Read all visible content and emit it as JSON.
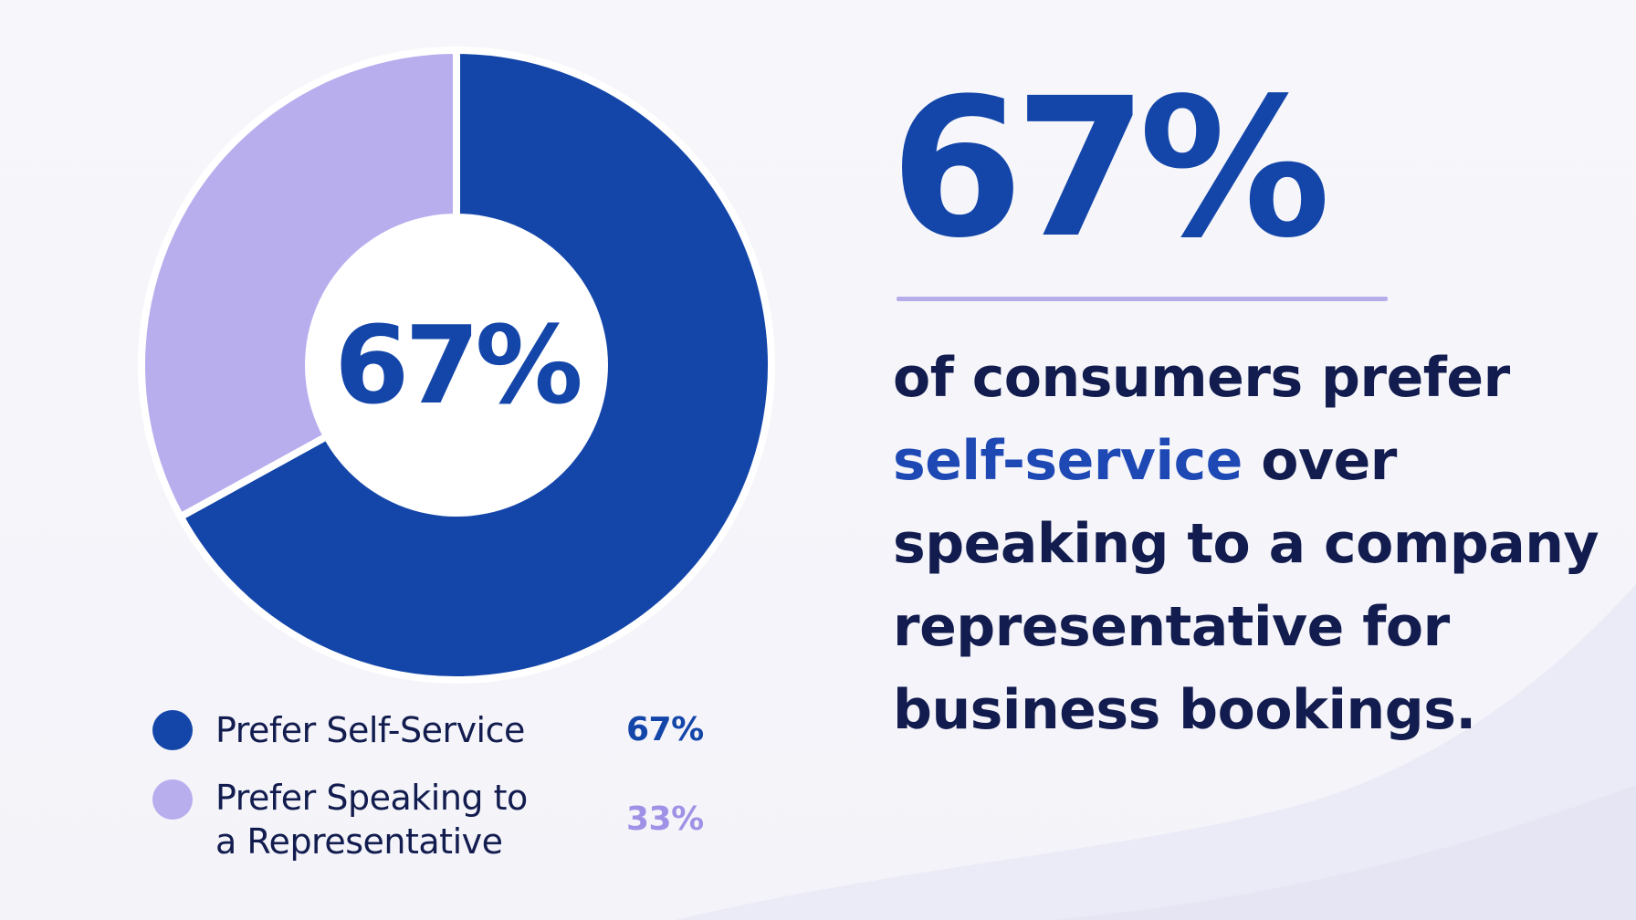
{
  "chart_data": {
    "type": "pie",
    "style": "donut",
    "slices": [
      {
        "label": "Prefer Self-Service",
        "value": 67,
        "value_text": "67%",
        "color": "#1446aa"
      },
      {
        "label": "Prefer Speaking to\na Representative",
        "value": 33,
        "value_text": "33%",
        "color": "#b8aeee"
      }
    ],
    "center_label": "67%"
  },
  "stat": {
    "value": "67%",
    "statement_before": "of consumers prefer ",
    "statement_highlight": "self-service",
    "statement_after": " over speaking to a company representative for business bookings."
  },
  "colors": {
    "primary": "#1446aa",
    "secondary": "#b8aeee",
    "text_dark": "#121c4e",
    "highlight_text": "#1e49b4",
    "divider": "#b6aeea"
  }
}
